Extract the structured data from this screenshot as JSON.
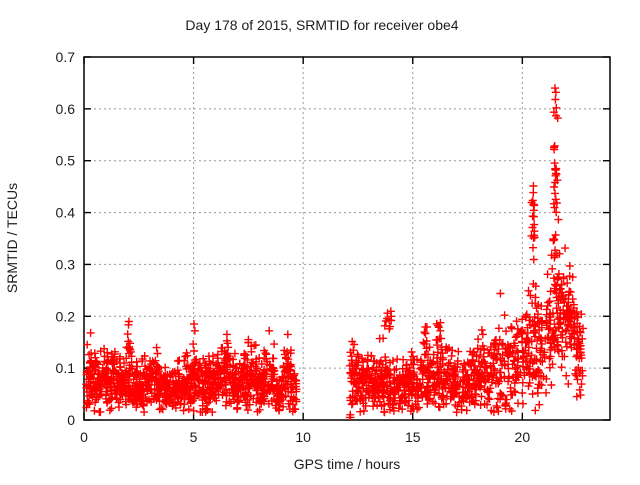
{
  "window": {
    "background": "#ffffff"
  },
  "chart_data": {
    "type": "scatter",
    "title": "Day 178 of 2015, SRMTID for receiver obe4",
    "xlabel": "GPS time / hours",
    "ylabel": "SRMTID / TECUs",
    "xlim": [
      0,
      24
    ],
    "ylim": [
      0,
      0.7
    ],
    "xticks": [
      0,
      5,
      10,
      15,
      20
    ],
    "yticks": [
      0,
      0.1,
      0.2,
      0.3,
      0.4,
      0.5,
      0.6,
      0.7
    ],
    "grid": true,
    "grid_style": "dotted",
    "legend": "none",
    "marker": "plus",
    "marker_color": "#ff0000",
    "grid_color": "#9a9a9a",
    "border_color": "#000000",
    "text_color": "#1c1c1c",
    "data_gaps": [
      [
        9.7,
        12.1
      ],
      [
        22.8,
        24.0
      ]
    ],
    "seed": 20150178,
    "bands_comment": "dense scatter bands [t_start,t_end,count,mean,sigma,max]",
    "bands": [
      [
        0.1,
        0.45,
        45,
        0.075,
        0.03,
        0.16
      ],
      [
        0.45,
        0.8,
        46,
        0.08,
        0.03,
        0.165
      ],
      [
        0.8,
        1.15,
        46,
        0.085,
        0.028,
        0.16
      ],
      [
        1.15,
        1.5,
        45,
        0.075,
        0.026,
        0.14
      ],
      [
        1.5,
        1.9,
        48,
        0.068,
        0.024,
        0.125
      ],
      [
        1.9,
        2.2,
        36,
        0.08,
        0.03,
        0.15
      ],
      [
        2.2,
        2.6,
        48,
        0.068,
        0.024,
        0.125
      ],
      [
        2.6,
        3.0,
        48,
        0.072,
        0.025,
        0.13
      ],
      [
        3.0,
        3.4,
        48,
        0.075,
        0.027,
        0.14
      ],
      [
        3.4,
        3.8,
        48,
        0.062,
        0.022,
        0.115
      ],
      [
        3.8,
        4.2,
        48,
        0.055,
        0.02,
        0.105
      ],
      [
        4.2,
        4.6,
        48,
        0.06,
        0.022,
        0.115
      ],
      [
        4.6,
        4.95,
        44,
        0.07,
        0.026,
        0.135
      ],
      [
        4.95,
        5.15,
        26,
        0.085,
        0.03,
        0.15
      ],
      [
        5.15,
        5.6,
        50,
        0.065,
        0.022,
        0.12
      ],
      [
        5.6,
        6.0,
        48,
        0.07,
        0.024,
        0.13
      ],
      [
        6.0,
        6.4,
        48,
        0.08,
        0.028,
        0.15
      ],
      [
        6.4,
        6.7,
        40,
        0.085,
        0.03,
        0.16
      ],
      [
        6.7,
        7.1,
        48,
        0.07,
        0.024,
        0.13
      ],
      [
        7.1,
        7.5,
        48,
        0.078,
        0.028,
        0.15
      ],
      [
        7.5,
        7.9,
        48,
        0.082,
        0.03,
        0.16
      ],
      [
        7.9,
        8.2,
        40,
        0.065,
        0.024,
        0.12
      ],
      [
        8.2,
        8.7,
        56,
        0.085,
        0.032,
        0.17
      ],
      [
        8.7,
        9.1,
        44,
        0.05,
        0.018,
        0.095
      ],
      [
        9.1,
        9.45,
        40,
        0.08,
        0.03,
        0.16
      ],
      [
        9.45,
        9.7,
        26,
        0.055,
        0.02,
        0.1
      ],
      [
        12.1,
        12.55,
        50,
        0.085,
        0.03,
        0.155
      ],
      [
        12.55,
        13.0,
        50,
        0.07,
        0.025,
        0.13
      ],
      [
        13.0,
        13.45,
        48,
        0.065,
        0.024,
        0.125
      ],
      [
        13.45,
        13.8,
        42,
        0.08,
        0.033,
        0.16
      ],
      [
        13.8,
        14.3,
        50,
        0.068,
        0.025,
        0.13
      ],
      [
        14.3,
        14.8,
        50,
        0.065,
        0.024,
        0.125
      ],
      [
        14.8,
        15.3,
        50,
        0.072,
        0.026,
        0.135
      ],
      [
        15.3,
        15.75,
        46,
        0.078,
        0.03,
        0.15
      ],
      [
        15.75,
        16.2,
        46,
        0.075,
        0.028,
        0.145
      ],
      [
        16.2,
        16.7,
        50,
        0.078,
        0.028,
        0.15
      ],
      [
        16.7,
        17.2,
        50,
        0.07,
        0.026,
        0.14
      ],
      [
        17.2,
        17.7,
        50,
        0.075,
        0.028,
        0.145
      ],
      [
        17.7,
        18.1,
        46,
        0.088,
        0.032,
        0.17
      ],
      [
        18.1,
        18.7,
        56,
        0.09,
        0.034,
        0.175
      ],
      [
        18.7,
        19.3,
        56,
        0.095,
        0.042,
        0.23
      ],
      [
        19.3,
        19.9,
        56,
        0.105,
        0.045,
        0.25
      ],
      [
        19.9,
        20.35,
        48,
        0.125,
        0.052,
        0.31
      ],
      [
        20.35,
        20.62,
        30,
        0.15,
        0.06,
        0.33
      ],
      [
        20.62,
        21.1,
        46,
        0.13,
        0.05,
        0.29
      ],
      [
        21.1,
        21.38,
        32,
        0.17,
        0.06,
        0.35
      ],
      [
        21.66,
        22.05,
        46,
        0.2,
        0.055,
        0.335
      ],
      [
        22.05,
        22.45,
        46,
        0.19,
        0.048,
        0.3
      ],
      [
        22.45,
        22.8,
        38,
        0.13,
        0.038,
        0.21
      ]
    ],
    "streaks_comment": "vertical excursions [t_start,t_end,count,y_low,y_high,bias]",
    "streaks": [
      [
        1.98,
        2.12,
        9,
        0.12,
        0.192,
        1.0
      ],
      [
        13.72,
        14.05,
        8,
        0.16,
        0.21,
        1.0
      ],
      [
        15.45,
        15.7,
        8,
        0.135,
        0.196,
        1.0
      ],
      [
        16.05,
        16.3,
        10,
        0.14,
        0.19,
        1.0
      ],
      [
        20.4,
        20.6,
        18,
        0.33,
        0.452,
        1.0
      ],
      [
        21.38,
        21.66,
        42,
        0.13,
        0.4,
        1.4
      ],
      [
        21.44,
        21.62,
        22,
        0.4,
        0.6,
        1.1
      ]
    ],
    "outliers_comment": "individually visible points [t,y]",
    "outliers": [
      [
        0.3,
        0.168
      ],
      [
        2.05,
        0.19
      ],
      [
        5.02,
        0.185
      ],
      [
        5.06,
        0.172
      ],
      [
        6.52,
        0.165
      ],
      [
        8.45,
        0.172
      ],
      [
        9.3,
        0.165
      ],
      [
        12.13,
        0.005
      ],
      [
        12.16,
        0.005
      ],
      [
        12.15,
        0.01
      ],
      [
        12.22,
        0.03
      ],
      [
        13.85,
        0.206
      ],
      [
        14.02,
        0.2
      ],
      [
        19.0,
        0.244
      ],
      [
        21.49,
        0.64
      ],
      [
        21.53,
        0.632
      ],
      [
        21.51,
        0.618
      ],
      [
        21.55,
        0.602
      ],
      [
        22.62,
        0.058
      ],
      [
        22.66,
        0.048
      ]
    ]
  }
}
